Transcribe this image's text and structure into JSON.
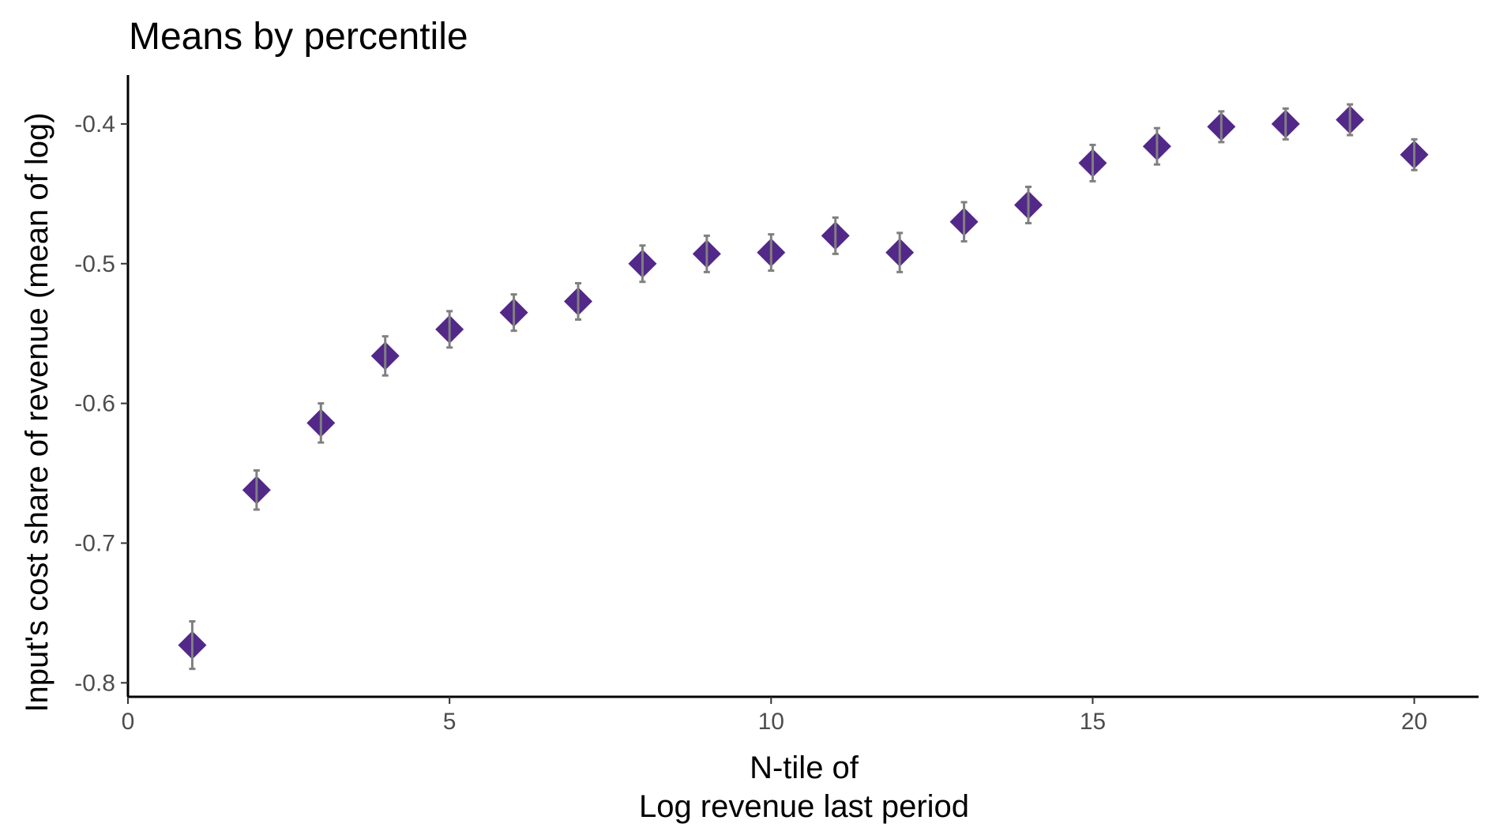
{
  "chart_data": {
    "type": "scatter",
    "title": "Means by percentile",
    "xlabel_lines": [
      "N-tile of",
      "Log revenue last period"
    ],
    "ylabel": "Input's cost share of revenue (mean of log)",
    "xlim": [
      0,
      21
    ],
    "ylim": [
      -0.81,
      -0.365
    ],
    "xticks": [
      0,
      5,
      10,
      15,
      20
    ],
    "xtick_labels": [
      "0",
      "5",
      "10",
      "15",
      "20"
    ],
    "yticks": [
      -0.8,
      -0.7,
      -0.6,
      -0.5,
      -0.4
    ],
    "ytick_labels": [
      "-0.8",
      "-0.7",
      "-0.6",
      "-0.5",
      "-0.4"
    ],
    "grid": false,
    "marker": "diamond",
    "colors": {
      "point": "#522888",
      "errorbar": "#808080",
      "axis": "#000000",
      "tick_text": "#4d4d4d"
    },
    "series": [
      {
        "x": [
          1,
          2,
          3,
          4,
          5,
          6,
          7,
          8,
          9,
          10,
          11,
          12,
          13,
          14,
          15,
          16,
          17,
          18,
          19,
          20
        ],
        "y": [
          -0.773,
          -0.662,
          -0.614,
          -0.566,
          -0.547,
          -0.535,
          -0.527,
          -0.5,
          -0.493,
          -0.492,
          -0.48,
          -0.492,
          -0.47,
          -0.458,
          -0.428,
          -0.416,
          -0.402,
          -0.4,
          -0.397,
          -0.422
        ],
        "ymin": [
          -0.79,
          -0.676,
          -0.628,
          -0.58,
          -0.56,
          -0.548,
          -0.54,
          -0.513,
          -0.506,
          -0.505,
          -0.493,
          -0.506,
          -0.484,
          -0.471,
          -0.441,
          -0.429,
          -0.413,
          -0.411,
          -0.408,
          -0.433
        ],
        "ymax": [
          -0.756,
          -0.648,
          -0.6,
          -0.552,
          -0.534,
          -0.522,
          -0.514,
          -0.487,
          -0.48,
          -0.479,
          -0.467,
          -0.478,
          -0.456,
          -0.445,
          -0.415,
          -0.403,
          -0.391,
          -0.389,
          -0.386,
          -0.411
        ]
      }
    ]
  }
}
